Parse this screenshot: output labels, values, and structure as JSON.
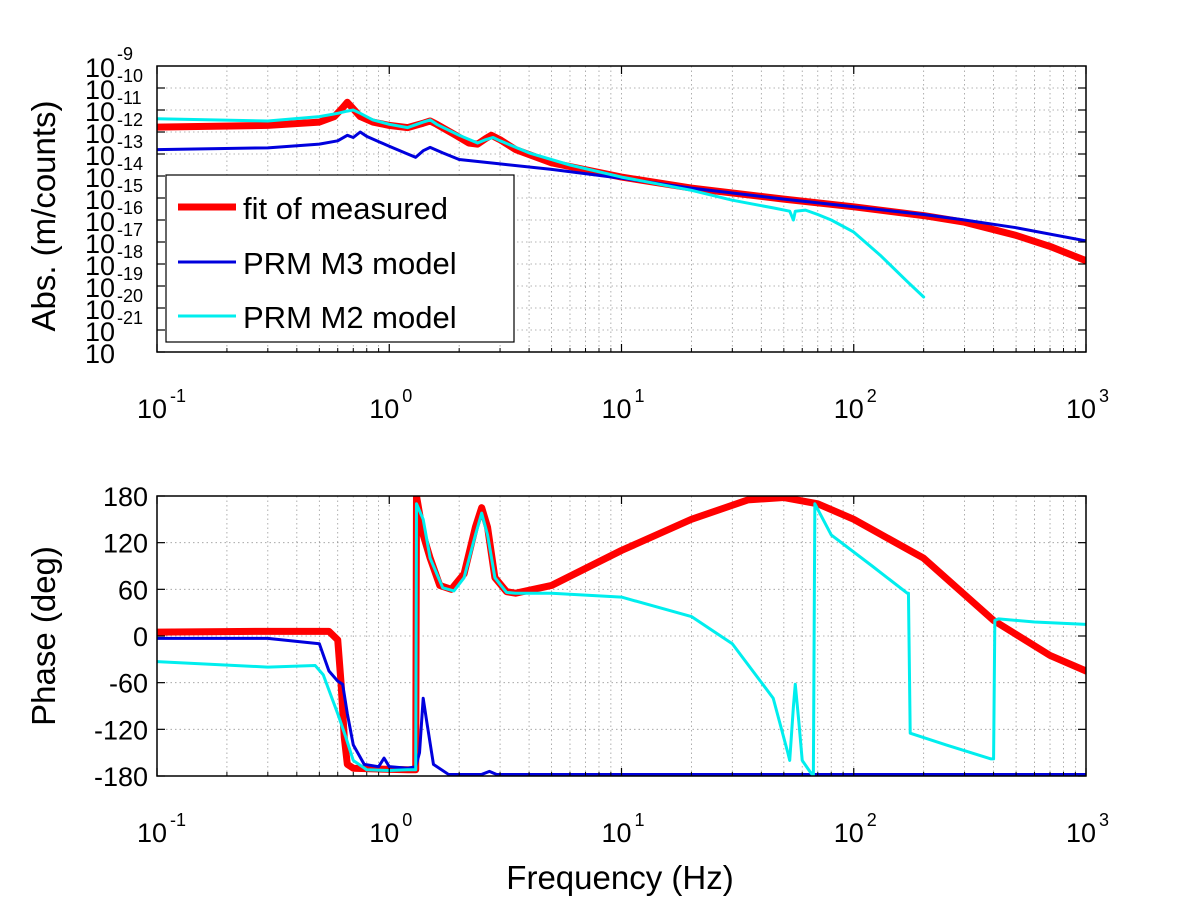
{
  "chart_data": [
    {
      "type": "line",
      "panel": "magnitude",
      "ylabel": "Abs. (m/counts)",
      "xlabel": "",
      "x_scale": "log",
      "y_scale": "log",
      "xlim": [
        0.1,
        1000
      ],
      "ylim": [
        1e-22,
        1e-09
      ],
      "grid": true,
      "legend_position": "middle-left",
      "x_tick_labels": [
        {
          "base": "10",
          "exp": "-1"
        },
        {
          "base": "10",
          "exp": "0"
        },
        {
          "base": "10",
          "exp": "1"
        },
        {
          "base": "10",
          "exp": "2"
        },
        {
          "base": "10",
          "exp": "3"
        }
      ],
      "y_tick_labels": [
        {
          "base": "10",
          "exp": "-9"
        },
        {
          "base": "10",
          "exp": "-10"
        },
        {
          "base": "10",
          "exp": "-11"
        },
        {
          "base": "10",
          "exp": "-12"
        },
        {
          "base": "10",
          "exp": "-13"
        },
        {
          "base": "10",
          "exp": "-14"
        },
        {
          "base": "10",
          "exp": "-15"
        },
        {
          "base": "10",
          "exp": "-16"
        },
        {
          "base": "10",
          "exp": "-17"
        },
        {
          "base": "10",
          "exp": "-18"
        },
        {
          "base": "10",
          "exp": "-19"
        },
        {
          "base": "10",
          "exp": "-20"
        },
        {
          "base": "10",
          "exp": "-21"
        },
        {
          "base": "10",
          "exp": ""
        }
      ],
      "series": [
        {
          "name": "fit of measured",
          "color": "#ff0000",
          "width": 7,
          "points": [
            [
              0.1,
              -11.78
            ],
            [
              0.3,
              -11.7
            ],
            [
              0.5,
              -11.55
            ],
            [
              0.58,
              -11.3
            ],
            [
              0.63,
              -10.9
            ],
            [
              0.66,
              -10.65
            ],
            [
              0.7,
              -10.95
            ],
            [
              0.75,
              -11.3
            ],
            [
              0.85,
              -11.55
            ],
            [
              1.0,
              -11.7
            ],
            [
              1.2,
              -11.8
            ],
            [
              1.4,
              -11.6
            ],
            [
              1.5,
              -11.5
            ],
            [
              1.6,
              -11.65
            ],
            [
              1.9,
              -12.1
            ],
            [
              2.2,
              -12.5
            ],
            [
              2.4,
              -12.55
            ],
            [
              2.6,
              -12.3
            ],
            [
              2.75,
              -12.15
            ],
            [
              3.0,
              -12.35
            ],
            [
              3.5,
              -12.8
            ],
            [
              5,
              -13.4
            ],
            [
              10,
              -14.05
            ],
            [
              20,
              -14.55
            ],
            [
              50,
              -15.05
            ],
            [
              100,
              -15.4
            ],
            [
              200,
              -15.8
            ],
            [
              300,
              -16.1
            ],
            [
              500,
              -16.7
            ],
            [
              700,
              -17.2
            ],
            [
              1000,
              -17.85
            ]
          ]
        },
        {
          "name": "PRM M3 model",
          "color": "#0000dd",
          "width": 3,
          "points": [
            [
              0.1,
              -12.8
            ],
            [
              0.3,
              -12.72
            ],
            [
              0.5,
              -12.55
            ],
            [
              0.6,
              -12.4
            ],
            [
              0.66,
              -12.15
            ],
            [
              0.7,
              -12.25
            ],
            [
              0.75,
              -12.0
            ],
            [
              0.8,
              -12.2
            ],
            [
              1.0,
              -12.65
            ],
            [
              1.2,
              -13.0
            ],
            [
              1.3,
              -13.15
            ],
            [
              1.4,
              -12.85
            ],
            [
              1.5,
              -12.7
            ],
            [
              1.7,
              -12.95
            ],
            [
              2.0,
              -13.25
            ],
            [
              3,
              -13.45
            ],
            [
              5,
              -13.7
            ],
            [
              10,
              -14.1
            ],
            [
              20,
              -14.55
            ],
            [
              50,
              -15.05
            ],
            [
              100,
              -15.4
            ],
            [
              200,
              -15.75
            ],
            [
              300,
              -16.0
            ],
            [
              500,
              -16.35
            ],
            [
              1000,
              -16.95
            ]
          ]
        },
        {
          "name": "PRM M2 model",
          "color": "#00eeee",
          "width": 3,
          "points": [
            [
              0.1,
              -11.4
            ],
            [
              0.3,
              -11.5
            ],
            [
              0.5,
              -11.3
            ],
            [
              0.6,
              -11.15
            ],
            [
              0.66,
              -11.05
            ],
            [
              0.7,
              -11.0
            ],
            [
              0.75,
              -11.15
            ],
            [
              0.85,
              -11.45
            ],
            [
              1.0,
              -11.65
            ],
            [
              1.2,
              -11.8
            ],
            [
              1.4,
              -11.55
            ],
            [
              1.5,
              -11.45
            ],
            [
              1.6,
              -11.65
            ],
            [
              2.0,
              -12.15
            ],
            [
              2.4,
              -12.5
            ],
            [
              2.6,
              -12.35
            ],
            [
              2.8,
              -12.25
            ],
            [
              3.0,
              -12.4
            ],
            [
              4,
              -12.95
            ],
            [
              6,
              -13.5
            ],
            [
              10,
              -14.05
            ],
            [
              20,
              -14.65
            ],
            [
              30,
              -15.1
            ],
            [
              45,
              -15.45
            ],
            [
              53,
              -15.6
            ],
            [
              55,
              -16.0
            ],
            [
              56,
              -15.6
            ],
            [
              62,
              -15.55
            ],
            [
              70,
              -15.75
            ],
            [
              80,
              -16.0
            ],
            [
              100,
              -16.55
            ],
            [
              130,
              -17.6
            ],
            [
              170,
              -18.8
            ],
            [
              200,
              -19.5
            ]
          ]
        }
      ]
    },
    {
      "type": "line",
      "panel": "phase",
      "ylabel": "Phase (deg)",
      "xlabel": "Frequency (Hz)",
      "x_scale": "log",
      "xlim": [
        0.1,
        1000
      ],
      "ylim": [
        -180,
        180
      ],
      "grid": true,
      "x_tick_labels": [
        {
          "base": "10",
          "exp": "-1"
        },
        {
          "base": "10",
          "exp": "0"
        },
        {
          "base": "10",
          "exp": "1"
        },
        {
          "base": "10",
          "exp": "2"
        },
        {
          "base": "10",
          "exp": "3"
        }
      ],
      "y_ticks": [
        180,
        120,
        60,
        0,
        -60,
        -120,
        -180
      ],
      "y_tick_labels": [
        "180",
        "120",
        "60",
        "0",
        "-60",
        "-120",
        "-180"
      ],
      "series": [
        {
          "name": "fit of measured",
          "color": "#ff0000",
          "width": 7,
          "points": [
            [
              0.1,
              5
            ],
            [
              0.3,
              6
            ],
            [
              0.55,
              6
            ],
            [
              0.6,
              -5
            ],
            [
              0.62,
              -60
            ],
            [
              0.64,
              -130
            ],
            [
              0.66,
              -165
            ],
            [
              0.7,
              -170
            ],
            [
              0.9,
              -171
            ],
            [
              1.2,
              -172
            ],
            [
              1.3,
              -172
            ],
            [
              1.31,
              180
            ],
            [
              1.4,
              130
            ],
            [
              1.5,
              100
            ],
            [
              1.65,
              65
            ],
            [
              1.85,
              60
            ],
            [
              2.1,
              80
            ],
            [
              2.35,
              140
            ],
            [
              2.5,
              165
            ],
            [
              2.65,
              140
            ],
            [
              2.85,
              75
            ],
            [
              3.2,
              57
            ],
            [
              3.5,
              55
            ],
            [
              5,
              65
            ],
            [
              10,
              110
            ],
            [
              20,
              150
            ],
            [
              35,
              175
            ],
            [
              50,
              178
            ],
            [
              70,
              170
            ],
            [
              100,
              150
            ],
            [
              200,
              100
            ],
            [
              400,
              20
            ],
            [
              700,
              -25
            ],
            [
              1000,
              -45
            ]
          ]
        },
        {
          "name": "PRM M3 model",
          "color": "#0000dd",
          "width": 3,
          "points": [
            [
              0.1,
              -3
            ],
            [
              0.3,
              -3
            ],
            [
              0.5,
              -10
            ],
            [
              0.55,
              -45
            ],
            [
              0.6,
              -58
            ],
            [
              0.63,
              -62
            ],
            [
              0.66,
              -100
            ],
            [
              0.7,
              -140
            ],
            [
              0.78,
              -165
            ],
            [
              0.9,
              -168
            ],
            [
              0.95,
              -157
            ],
            [
              1.0,
              -168
            ],
            [
              1.2,
              -170
            ],
            [
              1.3,
              -168
            ],
            [
              1.35,
              -150
            ],
            [
              1.4,
              -80
            ],
            [
              1.45,
              -110
            ],
            [
              1.55,
              -165
            ],
            [
              1.8,
              -178
            ],
            [
              2.5,
              -178
            ],
            [
              2.7,
              -174
            ],
            [
              2.9,
              -178
            ],
            [
              10,
              -178
            ],
            [
              100,
              -178
            ],
            [
              1000,
              -178
            ]
          ]
        },
        {
          "name": "PRM M2 model",
          "color": "#00eeee",
          "width": 3,
          "points": [
            [
              0.1,
              -33
            ],
            [
              0.3,
              -40
            ],
            [
              0.48,
              -38
            ],
            [
              0.52,
              -50
            ],
            [
              0.6,
              -100
            ],
            [
              0.65,
              -130
            ],
            [
              0.7,
              -160
            ],
            [
              0.8,
              -172
            ],
            [
              1.0,
              -173
            ],
            [
              1.2,
              -172
            ],
            [
              1.3,
              -172
            ],
            [
              1.31,
              170
            ],
            [
              1.4,
              150
            ],
            [
              1.5,
              100
            ],
            [
              1.7,
              62
            ],
            [
              1.9,
              58
            ],
            [
              2.1,
              75
            ],
            [
              2.35,
              130
            ],
            [
              2.5,
              158
            ],
            [
              2.65,
              130
            ],
            [
              2.85,
              75
            ],
            [
              3.2,
              56
            ],
            [
              3.5,
              55
            ],
            [
              5,
              55
            ],
            [
              10,
              50
            ],
            [
              20,
              25
            ],
            [
              30,
              -10
            ],
            [
              45,
              -80
            ],
            [
              52,
              -150
            ],
            [
              53,
              -160
            ],
            [
              55,
              -90
            ],
            [
              56,
              -62
            ],
            [
              58,
              -110
            ],
            [
              60,
              -160
            ],
            [
              65,
              -175
            ],
            [
              67,
              -180
            ],
            [
              68,
              170
            ],
            [
              80,
              130
            ],
            [
              120,
              90
            ],
            [
              170,
              55
            ],
            [
              172,
              55
            ],
            [
              175,
              -125
            ],
            [
              250,
              -140
            ],
            [
              390,
              -158
            ],
            [
              400,
              -158
            ],
            [
              405,
              20
            ],
            [
              420,
              22
            ],
            [
              600,
              18
            ],
            [
              1000,
              15
            ]
          ]
        }
      ]
    }
  ]
}
